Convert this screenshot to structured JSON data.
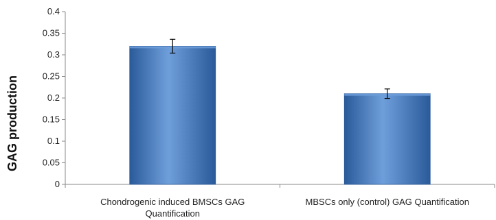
{
  "chart_data": {
    "type": "bar",
    "title": "",
    "xlabel": "",
    "ylabel": "GAG production",
    "ylim": [
      0,
      0.4
    ],
    "yticks": [
      "0",
      "0.05",
      "0.1",
      "0.15",
      "0.2",
      "0.25",
      "0.3",
      "0.35",
      "0.4"
    ],
    "grid": false,
    "legend": "none",
    "categories": [
      [
        "Chondrogenic induced BMSCs GAG",
        "Quantification"
      ],
      [
        "MBSCs only (control) GAG Quantification"
      ]
    ],
    "values": [
      0.32,
      0.21
    ],
    "error": [
      0.016,
      0.011
    ],
    "colors": {
      "bar": "#4a7fc4",
      "bar_light": "#6f9fdb",
      "bar_dark": "#2b5a9a",
      "axis": "#888888"
    }
  }
}
